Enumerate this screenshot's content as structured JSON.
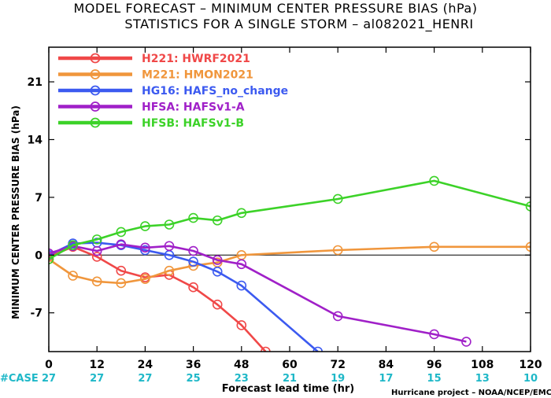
{
  "title_line1": "MODEL FORECAST – MINIMUM CENTER PRESSURE BIAS (hPa)",
  "title_line2": "STATISTICS FOR A SINGLE STORM – al082021_HENRI",
  "credit": "Hurricane project – NOAA/NCEP/EMC",
  "case_label": "#CASE",
  "chart_data": {
    "type": "line",
    "xlabel": "Forecast lead time (hr)",
    "ylabel": "MINIMUM CENTER PRESSURE BIAS (hPa)",
    "xlim": [
      0,
      120
    ],
    "ylim": [
      -11.7,
      25.2
    ],
    "x_ticks": [
      0,
      12,
      24,
      36,
      48,
      60,
      72,
      84,
      96,
      108,
      120
    ],
    "x_tick_labels": [
      "0",
      "12",
      "24",
      "36",
      "48",
      "60",
      "72",
      "84",
      "96",
      "108",
      "120"
    ],
    "y_ticks": [
      -7,
      0,
      7,
      14,
      21
    ],
    "y_tick_labels": [
      "-7",
      "0",
      "7",
      "14",
      "21"
    ],
    "zero_line": true,
    "case_counts": [
      "27",
      "27",
      "27",
      "25",
      "23",
      "21",
      "19",
      "17",
      "15",
      "13",
      "10"
    ],
    "legend_position": "top-left",
    "series": [
      {
        "name": "H221: HWRF2021",
        "color": "#f04848",
        "x": [
          0,
          6,
          12,
          18,
          24,
          30,
          36,
          42,
          48,
          54
        ],
        "y": [
          -0.2,
          1.0,
          -0.2,
          -1.9,
          -2.7,
          -2.4,
          -3.9,
          -6.0,
          -8.5,
          -11.7
        ]
      },
      {
        "name": "M221: HMON2021",
        "color": "#f0963c",
        "x": [
          0,
          6,
          12,
          18,
          24,
          30,
          36,
          42,
          48,
          72,
          96,
          120
        ],
        "y": [
          -0.5,
          -2.5,
          -3.2,
          -3.4,
          -2.9,
          -1.9,
          -1.3,
          -0.9,
          0.0,
          0.6,
          1.0,
          1.0
        ]
      },
      {
        "name": "HG16: HAFS_no_change",
        "color": "#3c5af0",
        "x": [
          0,
          6,
          12,
          18,
          24,
          30,
          36,
          42,
          48,
          67
        ],
        "y": [
          0.0,
          1.4,
          1.5,
          1.2,
          0.6,
          0.0,
          -0.8,
          -2.0,
          -3.7,
          -11.7
        ]
      },
      {
        "name": "HFSA: HAFSv1-A",
        "color": "#a020c8",
        "x": [
          0,
          6,
          12,
          18,
          24,
          30,
          36,
          42,
          48,
          72,
          96,
          104
        ],
        "y": [
          0.2,
          1.1,
          0.5,
          1.3,
          0.9,
          1.1,
          0.5,
          -0.6,
          -1.1,
          -7.4,
          -9.6,
          -10.5
        ]
      },
      {
        "name": "HFSB: HAFSv1-B",
        "color": "#3cd228",
        "x": [
          0,
          6,
          12,
          18,
          24,
          30,
          36,
          42,
          48,
          72,
          96,
          120
        ],
        "y": [
          -0.5,
          1.2,
          1.9,
          2.8,
          3.5,
          3.7,
          4.5,
          4.2,
          5.1,
          6.8,
          9.0,
          5.9
        ]
      }
    ]
  }
}
